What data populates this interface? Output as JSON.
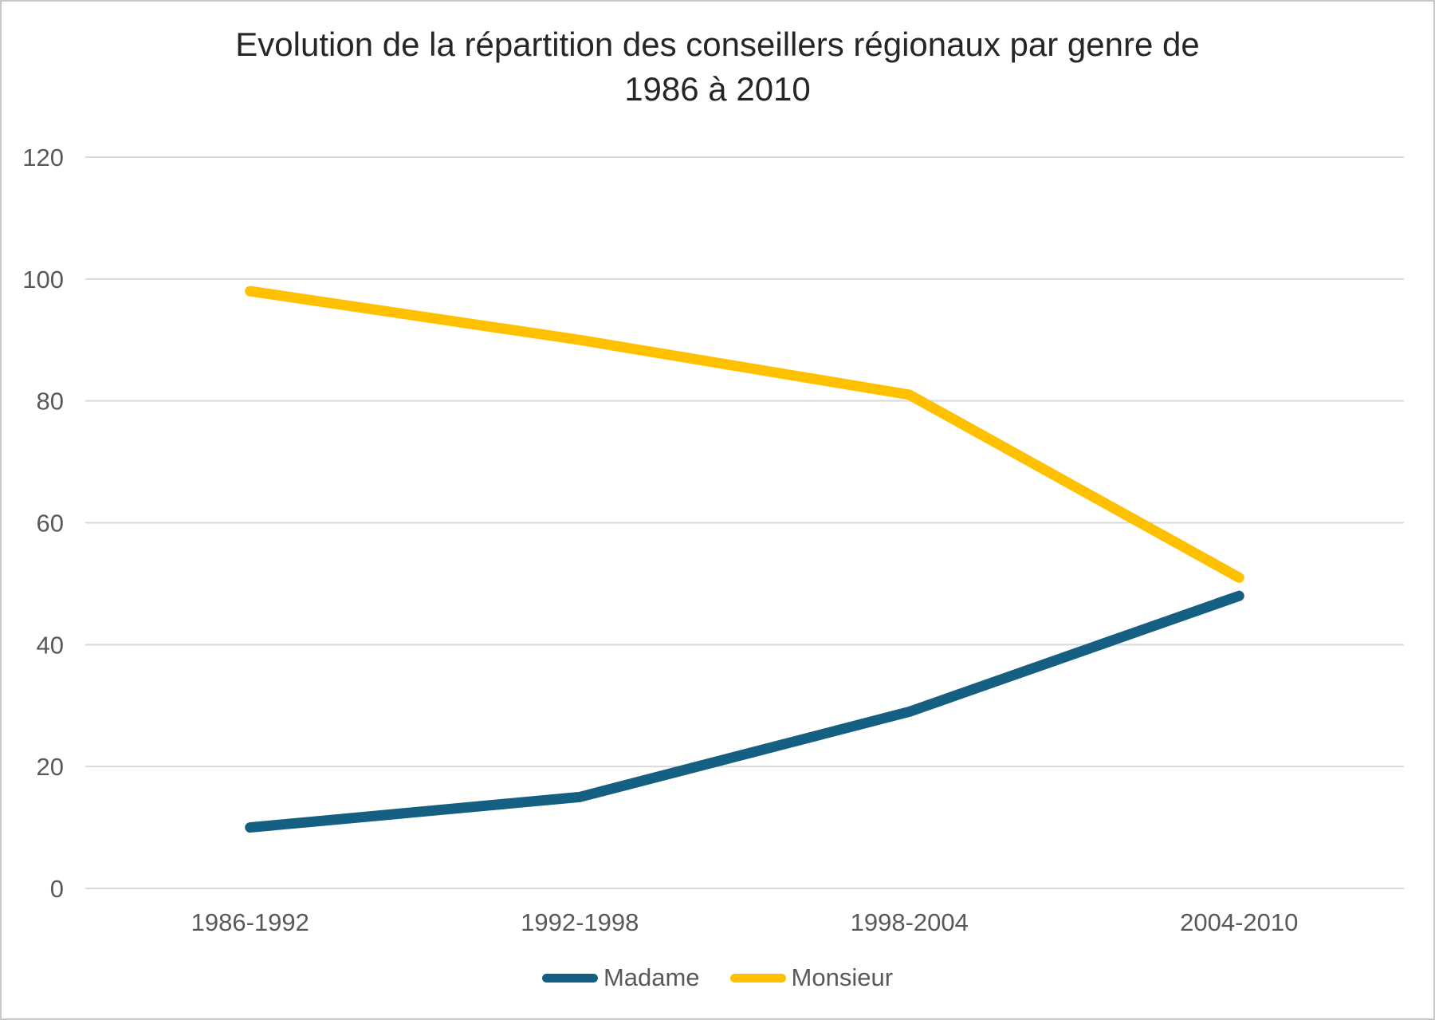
{
  "figure": {
    "title_line1": "Evolution de la répartition des conseillers régionaux par genre de",
    "title_line2": "1986 à 2010"
  },
  "chart_data": {
    "type": "line",
    "title": "Evolution de la répartition des conseillers régionaux par genre de 1986 à 2010",
    "categories": [
      "1986-1992",
      "1992-1998",
      "1998-2004",
      "2004-2010"
    ],
    "series": [
      {
        "name": "Madame",
        "color": "#156082",
        "values": [
          10,
          15,
          29,
          48
        ]
      },
      {
        "name": "Monsieur",
        "color": "#FFC000",
        "values": [
          98,
          90,
          81,
          51
        ]
      }
    ],
    "xlabel": "",
    "ylabel": "",
    "ylim": [
      0,
      120
    ],
    "ytick_step": 20,
    "grid": true,
    "legend_position": "bottom",
    "colors": {
      "gridline": "#D9D9D9",
      "axis_text": "#595959",
      "title_text": "#262626",
      "background": "#FFFFFF",
      "border": "#C8C8C8"
    }
  }
}
